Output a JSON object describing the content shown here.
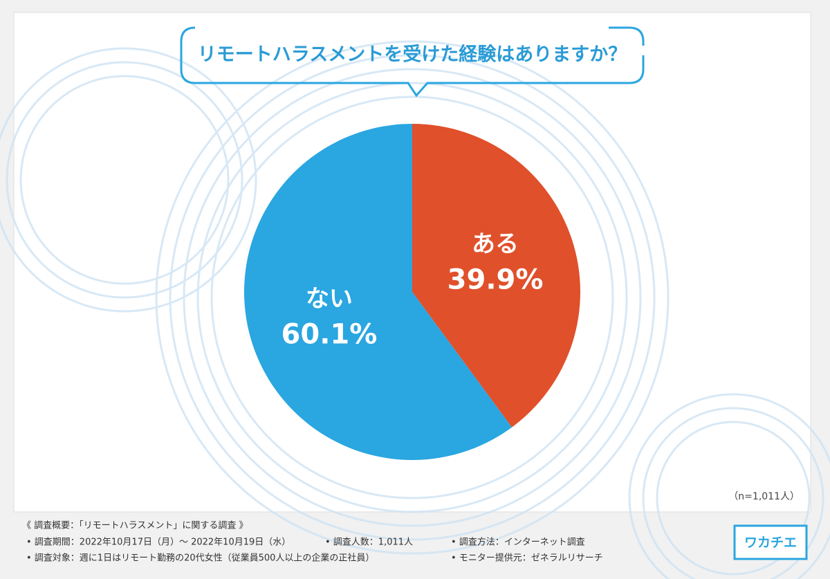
{
  "chart_data": {
    "type": "pie",
    "title": "リモートハラスメントを受けた経験はありますか？",
    "categories": [
      "ある",
      "ない"
    ],
    "values": [
      39.9,
      60.1
    ],
    "value_labels": [
      "39.9%",
      "60.1%"
    ],
    "colors": [
      "#e0502b",
      "#2aa6e0"
    ],
    "note": "（n=1,011人）",
    "footnotes": {
      "heading": "《 調査概要：「リモートハラスメント」に関する調査 》",
      "period": "• 調査期間：2022年10月17日（月）〜 2022年10月19日（水）",
      "count": "• 調査人数：1,011人",
      "method": "• 調査方法：インターネット調査",
      "target": "• 調査対象：週に1日はリモート勤務の20代女性（従業員500人以上の企業の正社員）",
      "provider": "• モニター提供元：ゼネラルリサーチ"
    },
    "logo": "ワカチエ"
  }
}
